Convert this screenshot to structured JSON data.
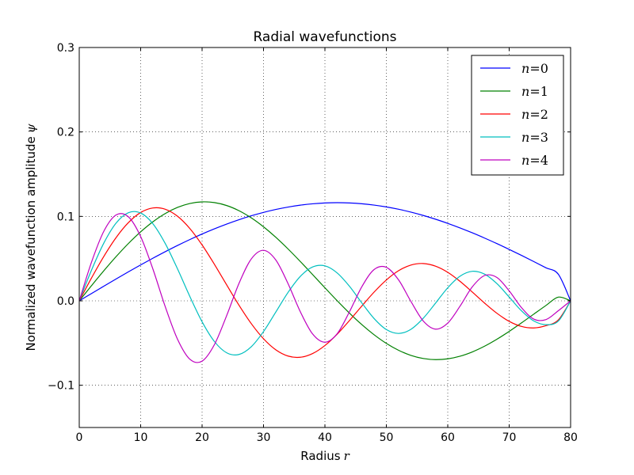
{
  "chart_data": {
    "type": "line",
    "title": "Radial wavefunctions",
    "xlabel": "Radius",
    "xlabel_symbol": "r",
    "ylabel": "Normalized wavefunction amplitude",
    "ylabel_symbol": "ψ",
    "xlim": [
      0,
      80
    ],
    "ylim": [
      -0.15,
      0.3
    ],
    "xticks": [
      0,
      10,
      20,
      30,
      40,
      50,
      60,
      70,
      80
    ],
    "xtick_labels": [
      "0",
      "10",
      "20",
      "30",
      "40",
      "50",
      "60",
      "70",
      "80"
    ],
    "yticks": [
      -0.1,
      0.0,
      0.1,
      0.2,
      0.3
    ],
    "ytick_labels": [
      "−0.1",
      "0.0",
      "0.1",
      "0.2",
      "0.3"
    ],
    "grid": true,
    "legend_position": "top-right",
    "x": [
      0,
      2,
      4,
      6,
      8,
      10,
      12,
      14,
      16,
      18,
      20,
      22,
      24,
      26,
      28,
      30,
      32,
      34,
      36,
      38,
      40,
      42,
      44,
      46,
      48,
      50,
      52,
      54,
      56,
      58,
      60,
      62,
      64,
      66,
      68,
      70,
      72,
      74,
      76,
      78,
      80
    ],
    "series": [
      {
        "name": "n=0",
        "label_symbol": "n",
        "label_value": "0",
        "color": "#0000ff",
        "values": [
          0.0,
          0.0087,
          0.01735,
          0.02591,
          0.03432,
          0.04253,
          0.05051,
          0.05819,
          0.06555,
          0.07254,
          0.07912,
          0.08526,
          0.09092,
          0.09607,
          0.10068,
          0.10473,
          0.1082,
          0.11106,
          0.11331,
          0.11492,
          0.1159,
          0.11623,
          0.11592,
          0.11497,
          0.1134,
          0.11121,
          0.10842,
          0.10505,
          0.10113,
          0.09668,
          0.09174,
          0.08634,
          0.08052,
          0.07431,
          0.06776,
          0.06091,
          0.05381,
          0.04651,
          0.03906,
          0.0315,
          0.0
        ]
      },
      {
        "name": "n=1",
        "label_symbol": "n",
        "label_value": "1",
        "color": "#008000",
        "values": [
          0.0,
          0.018,
          0.0356,
          0.05237,
          0.06787,
          0.08175,
          0.09367,
          0.10338,
          0.11063,
          0.11527,
          0.1172,
          0.11638,
          0.11286,
          0.10677,
          0.09828,
          0.08766,
          0.07524,
          0.0614,
          0.04653,
          0.03107,
          0.01545,
          0.0001,
          -0.01455,
          -0.02808,
          -0.04013,
          -0.05039,
          -0.0586,
          -0.06458,
          -0.06825,
          -0.06959,
          -0.06865,
          -0.06555,
          -0.06048,
          -0.05369,
          -0.04548,
          -0.03617,
          -0.02614,
          -0.01577,
          -0.00545,
          0.0044,
          0.0
        ]
      },
      {
        "name": "n=2",
        "label_symbol": "n",
        "label_value": "2",
        "color": "#ff0000",
        "values": [
          0.0,
          0.0271,
          0.0526,
          0.0749,
          0.0926,
          0.1046,
          0.11,
          0.1085,
          0.1002,
          0.0857,
          0.0662,
          0.0433,
          0.0189,
          -0.0051,
          -0.0269,
          -0.0449,
          -0.058,
          -0.0654,
          -0.0668,
          -0.0624,
          -0.0529,
          -0.0394,
          -0.0233,
          -0.0062,
          0.0103,
          0.0247,
          0.0357,
          0.0424,
          0.0442,
          0.0411,
          0.0338,
          0.0231,
          0.0104,
          -0.0027,
          -0.0147,
          -0.0243,
          -0.0303,
          -0.0321,
          -0.0294,
          -0.0226,
          0.0
        ]
      },
      {
        "name": "n=3",
        "label_symbol": "n",
        "label_value": "3",
        "color": "#00bfbf",
        "values": [
          0.0,
          0.0364,
          0.0684,
          0.0921,
          0.1044,
          0.104,
          0.0912,
          0.0679,
          0.0378,
          0.0053,
          -0.0248,
          -0.0481,
          -0.0615,
          -0.0635,
          -0.0544,
          -0.0364,
          -0.0133,
          0.01,
          0.029,
          0.0401,
          0.0414,
          0.033,
          0.0172,
          -0.0024,
          -0.0209,
          -0.034,
          -0.0386,
          -0.0337,
          -0.0207,
          -0.0028,
          0.0155,
          0.0292,
          0.035,
          0.0316,
          0.0204,
          0.0045,
          -0.0118,
          -0.0238,
          -0.0282,
          -0.024,
          0.0
        ]
      },
      {
        "name": "n=4",
        "label_symbol": "n",
        "label_value": "4",
        "color": "#bf00bf",
        "values": [
          0.0,
          0.0459,
          0.0824,
          0.1017,
          0.0995,
          0.0761,
          0.0375,
          -0.0069,
          -0.0455,
          -0.0691,
          -0.0714,
          -0.0519,
          -0.0175,
          0.0205,
          0.0495,
          0.0598,
          0.0484,
          0.0203,
          -0.013,
          -0.0393,
          -0.049,
          -0.0389,
          -0.0129,
          0.0166,
          0.037,
          0.0397,
          0.0247,
          -0.0007,
          -0.0238,
          -0.0335,
          -0.0263,
          -0.0063,
          0.0166,
          0.03,
          0.0277,
          0.0118,
          -0.008,
          -0.0216,
          -0.0222,
          -0.0117,
          0.0
        ]
      }
    ]
  }
}
